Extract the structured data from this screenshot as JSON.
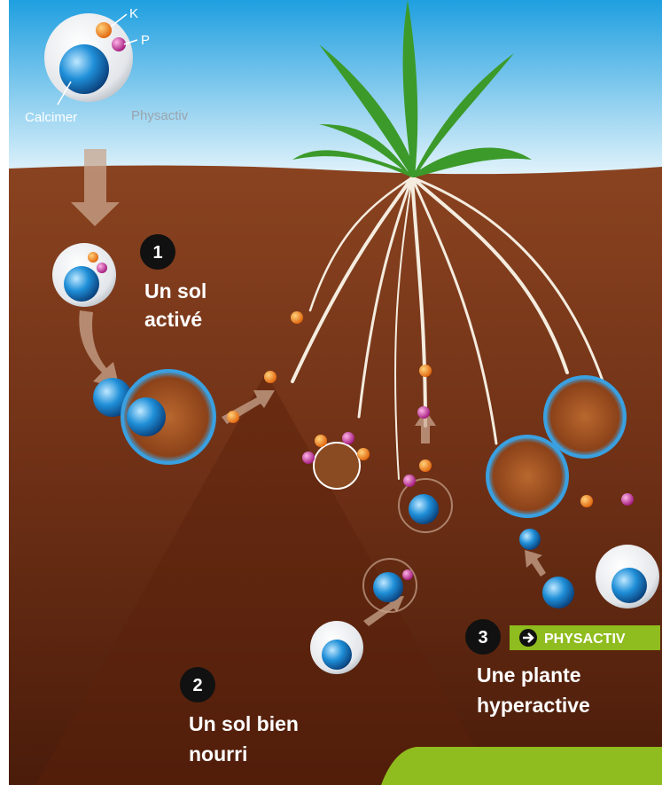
{
  "labels": {
    "k": "K",
    "p": "P",
    "calcimer": "Calcimer",
    "physactiv": "Physactiv"
  },
  "steps": [
    {
      "number": "1",
      "lines": [
        "Un sol",
        "activé"
      ]
    },
    {
      "number": "2",
      "lines": [
        "Un sol bien",
        "nourri"
      ]
    },
    {
      "number": "3",
      "lines": [
        "Une plante",
        "hyperactive"
      ],
      "badge": "PHYSACTIV"
    }
  ]
}
